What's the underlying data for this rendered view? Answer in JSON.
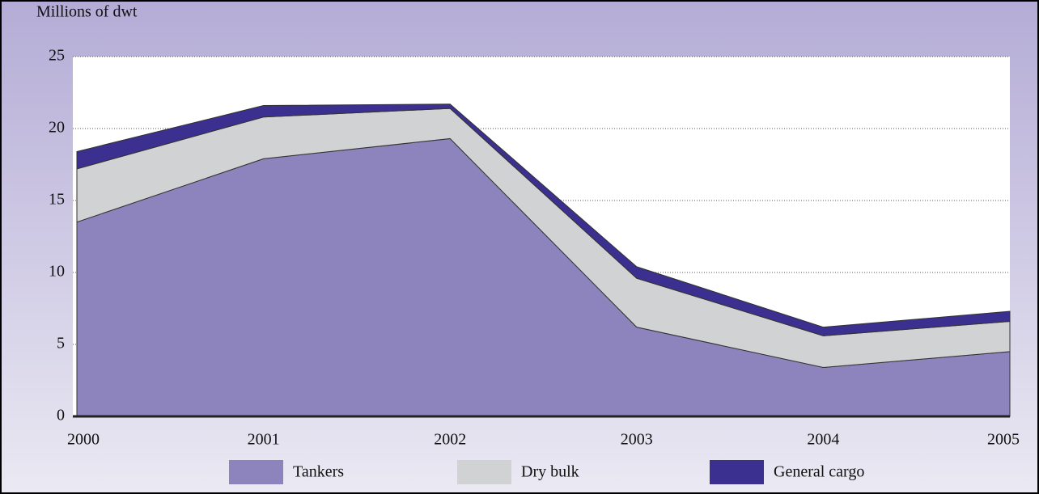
{
  "chart_data": {
    "type": "stacked_area",
    "y_label": "Millions of dwt",
    "categories": [
      "2000",
      "2001",
      "2002",
      "2003",
      "2004",
      "2005"
    ],
    "series": [
      {
        "name": "Tankers",
        "color": "#8d84be",
        "values": [
          13.5,
          17.9,
          19.3,
          6.2,
          3.4,
          4.5
        ]
      },
      {
        "name": "Dry bulk",
        "color": "#d1d2d4",
        "values": [
          3.7,
          2.9,
          2.1,
          3.4,
          2.2,
          2.1
        ]
      },
      {
        "name": "General cargo",
        "color": "#3b2f8f",
        "values": [
          1.2,
          0.8,
          0.3,
          0.8,
          0.6,
          0.7
        ]
      }
    ],
    "ylim": [
      0,
      25
    ],
    "yticks": [
      0,
      5,
      10,
      15,
      20,
      25
    ],
    "grid": true,
    "legend": "bottom"
  }
}
